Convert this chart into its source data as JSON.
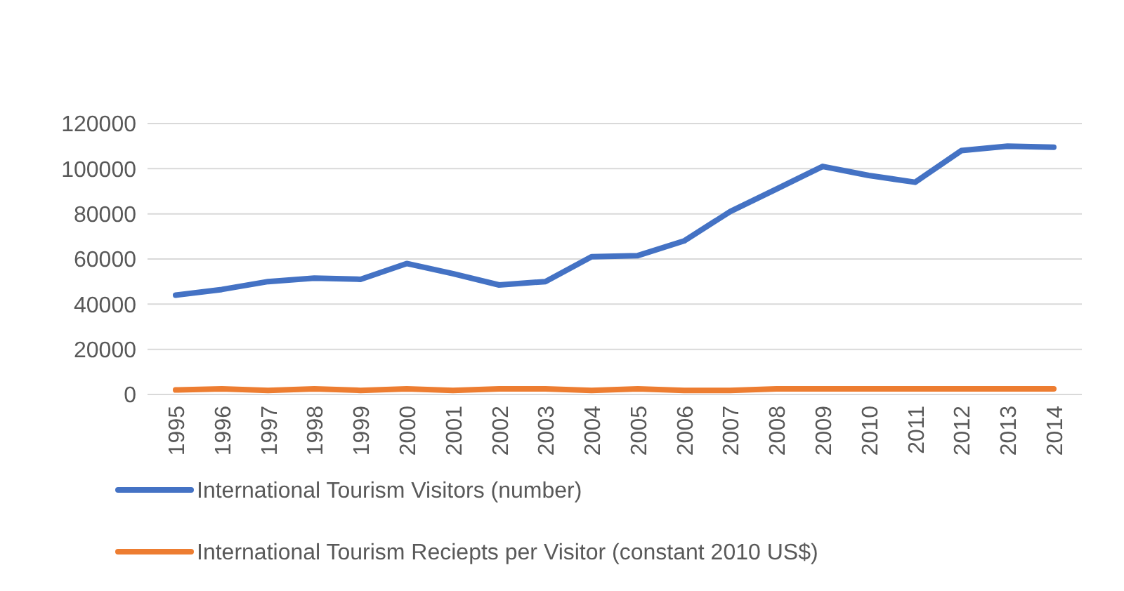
{
  "chart_data": {
    "type": "line",
    "categories": [
      "1995",
      "1996",
      "1997",
      "1998",
      "1999",
      "2000",
      "2001",
      "2002",
      "2003",
      "2004",
      "2005",
      "2006",
      "2007",
      "2008",
      "2009",
      "2010",
      "2011",
      "2012",
      "2013",
      "2014"
    ],
    "series": [
      {
        "name": "International Tourism Visitors (number)",
        "color": "#4472c4",
        "values": [
          44000,
          46500,
          50000,
          51500,
          51000,
          58000,
          53500,
          48500,
          50000,
          61000,
          61500,
          68000,
          81000,
          91000,
          101000,
          97000,
          94000,
          108000,
          110000,
          109500
        ]
      },
      {
        "name": "International Tourism Reciepts per Visitor (constant 2010 US$)",
        "color": "#ed7d31",
        "values": [
          2000,
          2500,
          1800,
          2500,
          1800,
          2500,
          1800,
          2500,
          2500,
          1800,
          2500,
          1800,
          1800,
          2500,
          2500,
          2500,
          2500,
          2500,
          2500,
          2500
        ]
      }
    ],
    "ylim": [
      0,
      120000
    ],
    "yticks": [
      0,
      20000,
      40000,
      60000,
      80000,
      100000,
      120000
    ],
    "grid": "y",
    "legend": "bottom"
  }
}
